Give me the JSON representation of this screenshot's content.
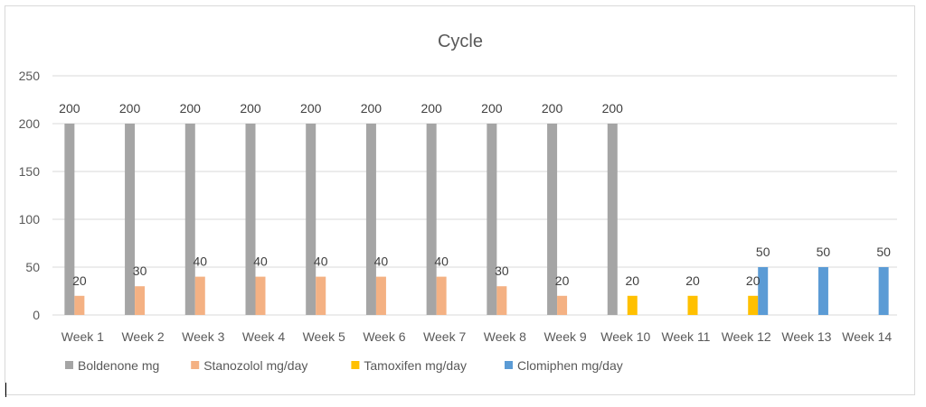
{
  "chart_data": {
    "type": "bar",
    "title": "Cycle",
    "xlabel": "",
    "ylabel": "",
    "ylim": [
      0,
      250
    ],
    "yticks": [
      0,
      50,
      100,
      150,
      200,
      250
    ],
    "grid": true,
    "legend_position": "bottom-left",
    "categories": [
      "Week 1",
      "Week 2",
      "Week 3",
      "Week 4",
      "Week 5",
      "Week 6",
      "Week 7",
      "Week 8",
      "Week 9",
      "Week 10",
      "Week 11",
      "Week 12",
      "Week 13",
      "Week 14"
    ],
    "series": [
      {
        "name": "Boldenone mg",
        "color": "#a5a5a5",
        "values": [
          200,
          200,
          200,
          200,
          200,
          200,
          200,
          200,
          200,
          200,
          null,
          null,
          null,
          null
        ]
      },
      {
        "name": "Stanozolol mg/day",
        "color": "#f4b183",
        "values": [
          20,
          30,
          40,
          40,
          40,
          40,
          40,
          30,
          20,
          null,
          null,
          null,
          null,
          null
        ]
      },
      {
        "name": "Tamoxifen mg/day",
        "color": "#ffc000",
        "values": [
          null,
          null,
          null,
          null,
          null,
          null,
          null,
          null,
          null,
          20,
          20,
          20,
          null,
          null
        ]
      },
      {
        "name": "Clomiphen mg/day",
        "color": "#5b9bd5",
        "values": [
          null,
          null,
          null,
          null,
          null,
          null,
          null,
          null,
          null,
          null,
          null,
          50,
          50,
          50
        ]
      }
    ]
  }
}
